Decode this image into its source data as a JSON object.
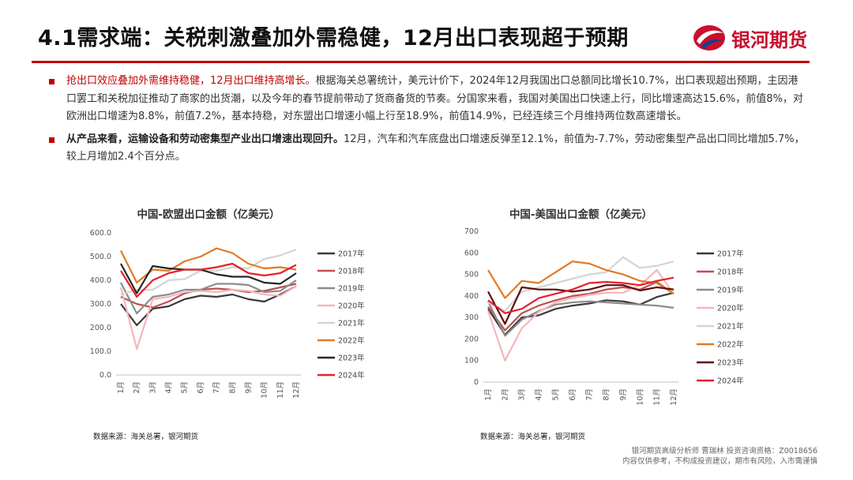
{
  "header": {
    "title": "4.1需求端：关税刺激叠加外需稳健，12月出口表现超于预期",
    "logo_text": "银河期货"
  },
  "bullets": [
    {
      "highlight": "抢出口效应叠加外需维持稳健，12月出口维持高增长。",
      "highlight_style": "red",
      "text": "根据海关总署统计，美元计价下，2024年12月我国出口总额同比增长10.7%，出口表现超出预期，主因港口罢工和关税加征推动了商家的出货潮，以及今年的春节提前带动了货商备货的节奏。分国家来看，我国对美国出口快速上行，同比增速高达15.6%，前值8%，对欧洲出口增速为8.8%，前值7.2%，基本持稳，对东盟出口增速小幅上行至18.9%，前值14.9%，已经连续三个月维持两位数高速增长。"
    },
    {
      "highlight": "从产品来看，运输设备和劳动密集型产业出口增速出现回升。",
      "highlight_style": "bold",
      "text": "12月，汽车和汽车底盘出口增速反弹至12.1%，前值为-7.7%，劳动密集型产品出口同比增加5.7%，较上月增加2.4个百分点。"
    }
  ],
  "chart_data": [
    {
      "type": "line",
      "title": "中国-欧盟出口金额（亿美元）",
      "categories": [
        "1月",
        "2月",
        "3月",
        "4月",
        "5月",
        "6月",
        "7月",
        "8月",
        "9月",
        "10月",
        "11月",
        "12月"
      ],
      "ylim": [
        0,
        600
      ],
      "yticks": [
        "0.0",
        "100.0",
        "200.0",
        "300.0",
        "400.0",
        "500.0",
        "600.0"
      ],
      "series": [
        {
          "name": "2017年",
          "color": "#3a3a3a",
          "values": [
            300,
            210,
            280,
            290,
            320,
            335,
            330,
            340,
            320,
            310,
            340,
            375
          ]
        },
        {
          "name": "2018年",
          "color": "#c0504d",
          "values": [
            330,
            300,
            285,
            310,
            345,
            360,
            365,
            360,
            350,
            355,
            370,
            385
          ]
        },
        {
          "name": "2019年",
          "color": "#8c8c8c",
          "values": [
            390,
            260,
            330,
            340,
            360,
            360,
            385,
            385,
            380,
            350,
            355,
            400
          ]
        },
        {
          "name": "2020年",
          "color": "#f4b6bc",
          "values": [
            370,
            110,
            320,
            330,
            350,
            355,
            350,
            360,
            355,
            340,
            335,
            375
          ]
        },
        {
          "name": "2021年",
          "color": "#d4d4d4",
          "values": [
            340,
            360,
            360,
            400,
            405,
            440,
            440,
            455,
            450,
            490,
            505,
            530
          ]
        },
        {
          "name": "2022年",
          "color": "#e07a26",
          "values": [
            525,
            390,
            445,
            440,
            480,
            500,
            535,
            515,
            470,
            450,
            455,
            445
          ]
        },
        {
          "name": "2023年",
          "color": "#262626",
          "values": [
            470,
            345,
            460,
            450,
            445,
            445,
            425,
            415,
            415,
            390,
            385,
            430
          ]
        },
        {
          "name": "2024年",
          "color": "#e8202b",
          "values": [
            440,
            330,
            400,
            430,
            445,
            445,
            455,
            470,
            430,
            420,
            430,
            465
          ]
        }
      ],
      "source": "数据来源：海关总署，银河期货"
    },
    {
      "type": "line",
      "title": "中国-美国出口金额（亿美元）",
      "categories": [
        "1月",
        "2月",
        "3月",
        "4月",
        "5月",
        "6月",
        "7月",
        "8月",
        "9月",
        "10月",
        "11月",
        "12月"
      ],
      "ylim": [
        0,
        700
      ],
      "yticks": [
        "0",
        "100",
        "200",
        "300",
        "400",
        "500",
        "600",
        "700"
      ],
      "series": [
        {
          "name": "2017年",
          "color": "#3a3a3a",
          "values": [
            340,
            220,
            300,
            310,
            340,
            355,
            365,
            380,
            375,
            360,
            395,
            415
          ]
        },
        {
          "name": "2018年",
          "color": "#c0504d",
          "values": [
            350,
            240,
            320,
            355,
            380,
            400,
            410,
            430,
            440,
            430,
            465,
            410
          ]
        },
        {
          "name": "2019年",
          "color": "#8c8c8c",
          "values": [
            375,
            215,
            290,
            330,
            360,
            370,
            375,
            370,
            365,
            360,
            355,
            345
          ]
        },
        {
          "name": "2020年",
          "color": "#f4b6bc",
          "values": [
            330,
            100,
            250,
            325,
            370,
            390,
            405,
            415,
            415,
            450,
            520,
            410
          ]
        },
        {
          "name": "2021年",
          "color": "#d4d4d4",
          "values": [
            370,
            330,
            420,
            440,
            460,
            480,
            500,
            510,
            580,
            530,
            540,
            560
          ]
        },
        {
          "name": "2022年",
          "color": "#e07a26",
          "values": [
            520,
            390,
            470,
            460,
            510,
            560,
            550,
            520,
            500,
            470,
            460,
            410
          ]
        },
        {
          "name": "2023年",
          "color": "#5e0c0c",
          "values": [
            420,
            270,
            440,
            430,
            430,
            420,
            430,
            450,
            450,
            425,
            440,
            430
          ]
        },
        {
          "name": "2024年",
          "color": "#e8202b",
          "values": [
            380,
            320,
            340,
            390,
            410,
            430,
            460,
            465,
            460,
            450,
            470,
            485
          ]
        }
      ],
      "source": "数据来源：海关总署，银河期货"
    }
  ],
  "footer": {
    "analyst": "银河期货高级分析师 曹瑞林 投资咨询资格：Z0018656",
    "disclaimer": "内容仅供参考，不构成投资建议，期市有风险，入市需谨慎"
  }
}
